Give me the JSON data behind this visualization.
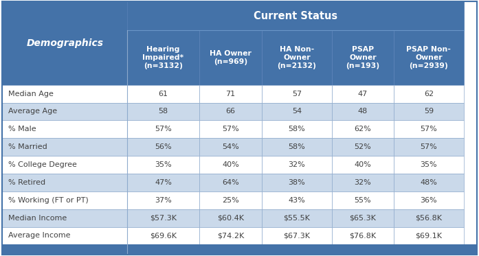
{
  "title": "Current Status",
  "col_headers": [
    "Hearing\nImpaired*\n(n=3132)",
    "HA Owner\n(n=969)",
    "HA Non-\nOwner\n(n=2132)",
    "PSAP\nOwner\n(n=193)",
    "PSAP Non-\nOwner\n(n=2939)"
  ],
  "demographics_label": "Demographics",
  "rows": [
    [
      "Median Age",
      "61",
      "71",
      "57",
      "47",
      "62"
    ],
    [
      "Average Age",
      "58",
      "66",
      "54",
      "48",
      "59"
    ],
    [
      "% Male",
      "57%",
      "57%",
      "58%",
      "62%",
      "57%"
    ],
    [
      "% Married",
      "56%",
      "54%",
      "58%",
      "52%",
      "57%"
    ],
    [
      "% College Degree",
      "35%",
      "40%",
      "32%",
      "40%",
      "35%"
    ],
    [
      "% Retired",
      "47%",
      "64%",
      "38%",
      "32%",
      "48%"
    ],
    [
      "% Working (FT or PT)",
      "37%",
      "25%",
      "43%",
      "55%",
      "36%"
    ],
    [
      "Median Income",
      "$57.3K",
      "$60.4K",
      "$55.5K",
      "$65.3K",
      "$56.8K"
    ],
    [
      "Average Income",
      "$69.6K",
      "$74.2K",
      "$67.3K",
      "$76.8K",
      "$69.1K"
    ]
  ],
  "header_bg_color": "#4472a8",
  "header_text_color": "#ffffff",
  "row_alt_colors": [
    "#ffffff",
    "#cad9ea"
  ],
  "row_text_color": "#404040",
  "border_color": "#8eaacc",
  "bottom_bar_color": "#4472a8",
  "figsize": [
    6.97,
    3.73
  ],
  "dpi": 100
}
